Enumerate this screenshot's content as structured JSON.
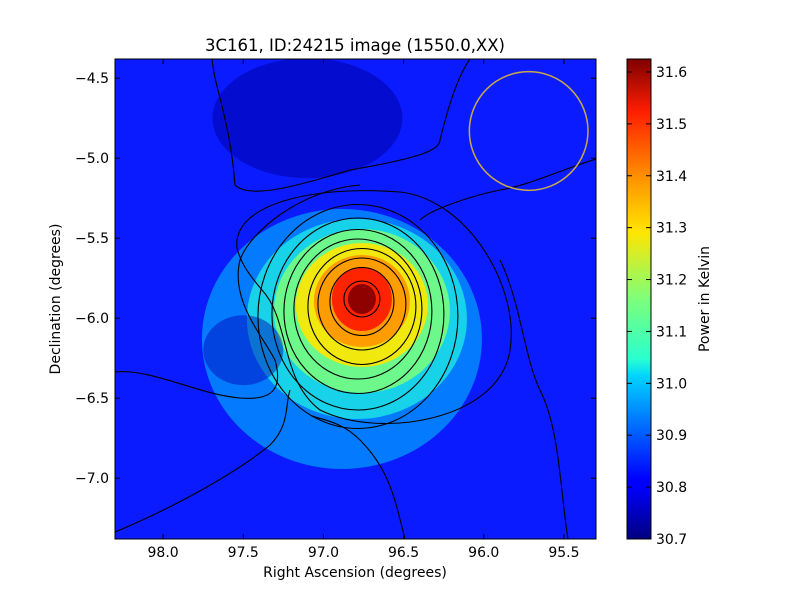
{
  "chart_data": {
    "type": "heatmap",
    "title": "3C161, ID:24215 image (1550.0,XX)",
    "xlabel": "Right Ascension (degrees)",
    "ylabel": "Declination (degrees)",
    "xlim": [
      98.3,
      95.3
    ],
    "ylim": [
      -7.38,
      -4.38
    ],
    "xticks": [
      98.0,
      97.5,
      97.0,
      96.5,
      96.0,
      95.5
    ],
    "xtick_labels": [
      "98.0",
      "97.5",
      "97.0",
      "96.5",
      "96.0",
      "95.5"
    ],
    "yticks": [
      -4.5,
      -5.0,
      -5.5,
      -6.0,
      -6.5,
      -7.0
    ],
    "ytick_labels": [
      "−4.5",
      "−5.0",
      "−5.5",
      "−6.0",
      "−6.5",
      "−7.0"
    ],
    "colorbar": {
      "label": "Power in Kelvin",
      "range": [
        30.7,
        31.625
      ],
      "ticks": [
        30.7,
        30.8,
        30.9,
        31.0,
        31.1,
        31.2,
        31.3,
        31.4,
        31.5,
        31.6
      ],
      "tick_labels": [
        "30.7",
        "30.8",
        "30.9",
        "31.0",
        "31.1",
        "31.2",
        "31.3",
        "31.4",
        "31.5",
        "31.6"
      ]
    },
    "peak": {
      "x": 96.76,
      "y": -5.88,
      "value": 31.62
    },
    "beam_circle": {
      "x": 95.72,
      "y": -4.83,
      "radius_deg": 0.37,
      "color": "#c8a84a"
    },
    "colormap": "jet",
    "contour_color": "#000000"
  }
}
